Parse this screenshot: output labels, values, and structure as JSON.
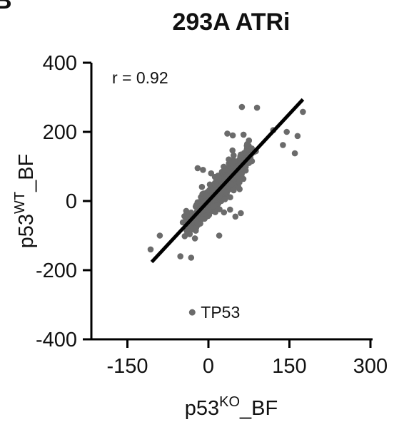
{
  "panel_letter": "B",
  "chart_data": {
    "type": "scatter",
    "title": "293A ATRi",
    "xlabel": {
      "base": "p53",
      "sup": "KO",
      "suffix": "_BF"
    },
    "ylabel": {
      "base": "p53",
      "sup": "WT",
      "suffix": "_BF"
    },
    "xlim": [
      -150,
      300
    ],
    "ylim": [
      -400,
      400
    ],
    "xticks": [
      -150,
      0,
      150,
      300
    ],
    "yticks": [
      -400,
      -200,
      0,
      200,
      400
    ],
    "annotation": "r = 0.92",
    "point_color": "#6b6b6b",
    "regression": {
      "slope": 1.68,
      "intercept": 0,
      "x_range": [
        -105,
        175
      ],
      "color": "#000000"
    },
    "highlighted_point": {
      "label": "TP53",
      "x": -30,
      "y": -322
    },
    "outliers": [
      {
        "x": -107,
        "y": -140
      },
      {
        "x": -52,
        "y": -160
      },
      {
        "x": -32,
        "y": -164
      },
      {
        "x": -25,
        "y": -108
      },
      {
        "x": 62,
        "y": 272
      },
      {
        "x": 90,
        "y": 270
      },
      {
        "x": 175,
        "y": 258
      },
      {
        "x": 160,
        "y": 138
      },
      {
        "x": 138,
        "y": 162
      },
      {
        "x": 35,
        "y": 195
      },
      {
        "x": 45,
        "y": 190
      },
      {
        "x": 65,
        "y": 192
      },
      {
        "x": 75,
        "y": 175
      },
      {
        "x": 120,
        "y": 205
      },
      {
        "x": 145,
        "y": 200
      },
      {
        "x": 165,
        "y": 188
      },
      {
        "x": -20,
        "y": 95
      },
      {
        "x": -10,
        "y": 90
      },
      {
        "x": 5,
        "y": 80
      },
      {
        "x": 60,
        "y": -35
      },
      {
        "x": 40,
        "y": -25
      },
      {
        "x": -90,
        "y": -100
      },
      {
        "x": 20,
        "y": -100
      },
      {
        "x": 50,
        "y": -45
      }
    ],
    "cloud": {
      "n_points": 1400,
      "slope": 1.68,
      "x_range": [
        -90,
        150
      ],
      "y_spread": 22
    }
  }
}
